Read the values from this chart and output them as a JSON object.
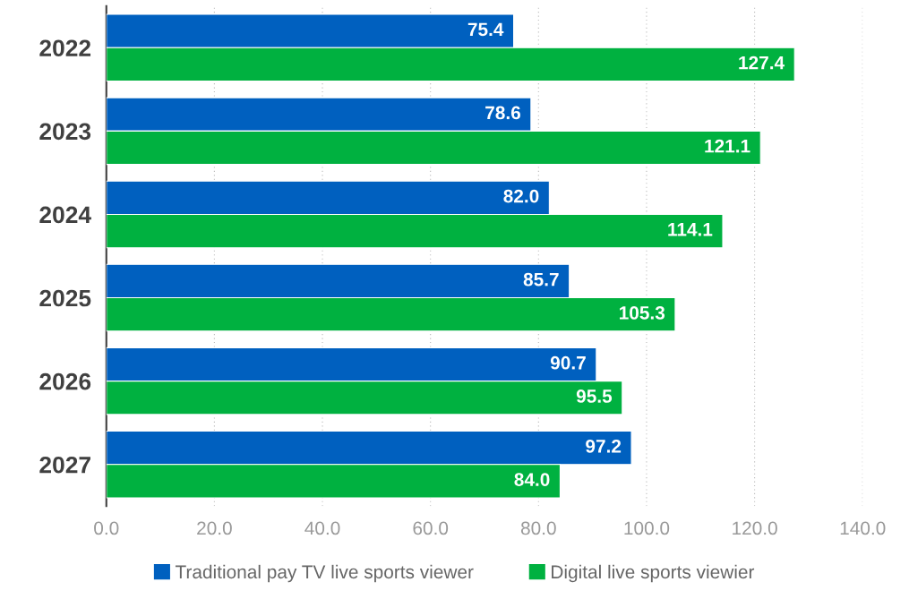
{
  "chart_data": {
    "type": "bar",
    "orientation": "horizontal",
    "categories": [
      "2022",
      "2023",
      "2024",
      "2025",
      "2026",
      "2027"
    ],
    "series": [
      {
        "name": "Traditional pay TV live sports viewer",
        "color": "#0060bf",
        "values": [
          75.4,
          78.6,
          82.0,
          85.7,
          90.7,
          97.2
        ],
        "value_labels": [
          "75.4",
          "78.6",
          "82.0",
          "85.7",
          "90.7",
          "97.2"
        ]
      },
      {
        "name": "Digital live sports viewier",
        "color": "#00b140",
        "values": [
          127.4,
          121.1,
          114.1,
          105.3,
          95.5,
          84.0
        ],
        "value_labels": [
          "127.4",
          "121.1",
          "114.1",
          "105.3",
          "95.5",
          "84.0"
        ]
      }
    ],
    "xlim": [
      0,
      140
    ],
    "xticks": [
      {
        "value": 0,
        "label": "0.0"
      },
      {
        "value": 20,
        "label": "20.0"
      },
      {
        "value": 40,
        "label": "40.0"
      },
      {
        "value": 60,
        "label": "60.0"
      },
      {
        "value": 80,
        "label": "80.0"
      },
      {
        "value": 100,
        "label": "100.0"
      },
      {
        "value": 120,
        "label": "120.0"
      },
      {
        "value": 140,
        "label": "140.0"
      }
    ],
    "grid": "x",
    "legend": "bottom"
  }
}
